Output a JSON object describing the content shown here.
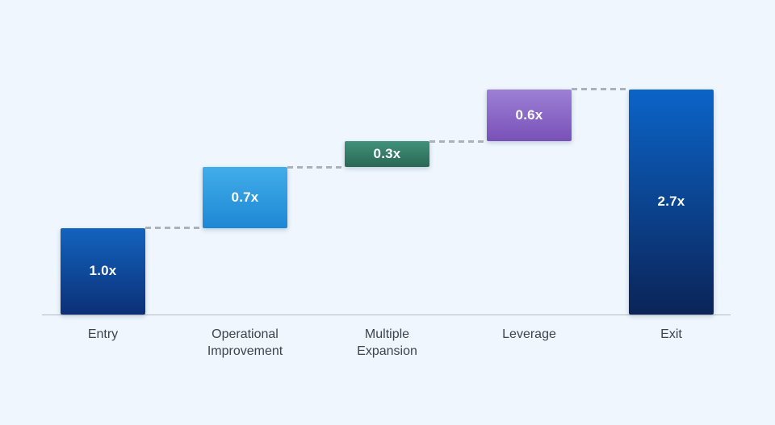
{
  "chart_data": {
    "type": "bar",
    "subtype": "waterfall",
    "title": "",
    "xlabel": "",
    "ylabel": "",
    "categories": [
      "Entry",
      "Operational\nImprovement",
      "Multiple\nExpansion",
      "Leverage",
      "Exit"
    ],
    "values": [
      1.0,
      0.7,
      0.3,
      0.6,
      2.7
    ],
    "value_labels": [
      "1.0x",
      "0.7x",
      "0.3x",
      "0.6x",
      "2.7x"
    ],
    "bar_roles": [
      "start",
      "increase",
      "increase",
      "increase",
      "total"
    ],
    "bar_gradients": [
      {
        "top": "#1363bf",
        "bottom": "#0b3076"
      },
      {
        "top": "#42ade9",
        "bottom": "#1e87d5"
      },
      {
        "top": "#41917a",
        "bottom": "#2a6853"
      },
      {
        "top": "#9d80d5",
        "bottom": "#7851b7"
      },
      {
        "top": "#0b64c8",
        "bottom": "#0b2458"
      }
    ],
    "value_label_color": "#ffffff",
    "category_label_color": "#3f434c",
    "connector_color": "#abb1b8",
    "axis_color": "#b6bcc3",
    "background_color": "#eff6fd",
    "ylim": [
      0,
      2.8
    ],
    "grid": false,
    "legend": false,
    "connector_style": "dashed"
  }
}
